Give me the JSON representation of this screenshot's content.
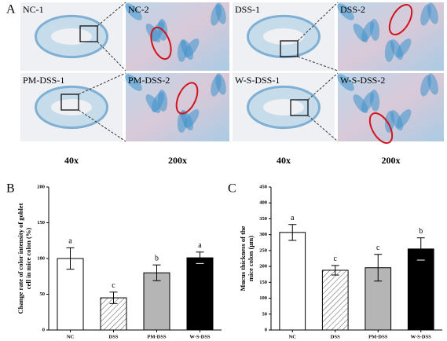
{
  "figure": {
    "panel": "A",
    "images": [
      {
        "label": "NC-1"
      },
      {
        "label": "NC-2"
      },
      {
        "label": "DSS-1"
      },
      {
        "label": "DSS-2"
      },
      {
        "label": "PM-DSS-1"
      },
      {
        "label": "PM-DSS-2"
      },
      {
        "label": "W-S-DSS-1"
      },
      {
        "label": "W-S-DSS-2"
      }
    ],
    "magnifications": [
      "40x",
      "200x",
      "40x",
      "200x"
    ]
  },
  "chart_data": [
    {
      "type": "bar",
      "panel": "B",
      "ylabel": [
        "Change rate of color intensity of goblet",
        "cell in mice colon (%)"
      ],
      "categories": [
        "NC",
        "DSS",
        "PM-DSS",
        "W-S-DSS"
      ],
      "values": [
        100,
        45,
        80,
        101
      ],
      "errors": [
        15,
        8,
        11,
        8
      ],
      "annotations": [
        "a",
        "c",
        "b",
        "a"
      ],
      "colors": [
        "#ffffff",
        "#ffffff",
        "#b5b5b5",
        "#000000"
      ],
      "hatch": [
        false,
        true,
        false,
        false
      ],
      "ylim": [
        0,
        200
      ],
      "yticks": [
        0,
        50,
        100,
        150,
        200
      ]
    },
    {
      "type": "bar",
      "panel": "C",
      "ylabel": [
        "Mucus thickness of the",
        "mice colon (μm)"
      ],
      "categories": [
        "NC",
        "DSS",
        "PM-DSS",
        "W-S-DSS"
      ],
      "values": [
        307,
        188,
        196,
        255
      ],
      "errors": [
        25,
        15,
        42,
        35
      ],
      "annotations": [
        "a",
        "c",
        "c",
        "b"
      ],
      "colors": [
        "#ffffff",
        "#ffffff",
        "#b5b5b5",
        "#000000"
      ],
      "hatch": [
        false,
        true,
        false,
        false
      ],
      "ylim": [
        0,
        450
      ],
      "yticks": [
        0,
        50,
        100,
        150,
        200,
        250,
        300,
        350,
        400,
        450
      ]
    }
  ]
}
